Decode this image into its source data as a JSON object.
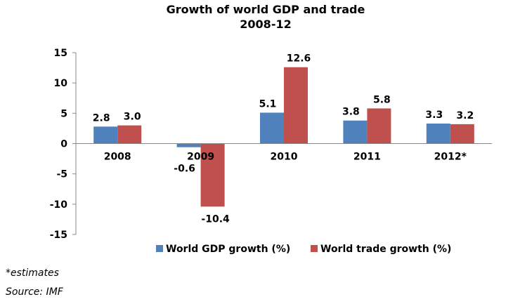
{
  "chart_data": {
    "type": "bar",
    "title": "Growth of world GDP and trade",
    "subtitle": "2008-12",
    "categories": [
      "2008",
      "2009",
      "2010",
      "2011",
      "2012*"
    ],
    "series": [
      {
        "name": "World GDP growth (%)",
        "values": [
          2.8,
          -0.6,
          5.1,
          3.8,
          3.3
        ],
        "labels": [
          "2.8",
          "-0.6",
          "5.1",
          "3.8",
          "3.3"
        ],
        "color": "#4F81BD"
      },
      {
        "name": "World trade growth (%)",
        "values": [
          3.0,
          -10.4,
          12.6,
          5.8,
          3.2
        ],
        "labels": [
          "3.0",
          "-10.4",
          "12.6",
          "5.8",
          "3.2"
        ],
        "color": "#C0504D"
      }
    ],
    "ylim": [
      -15,
      15
    ],
    "yticks": [
      15,
      10,
      5,
      0,
      -5,
      -10,
      -15
    ],
    "grid": false,
    "legend": "bottom"
  },
  "notes": {
    "estimates": "*estimates",
    "source": "Source: IMF"
  }
}
